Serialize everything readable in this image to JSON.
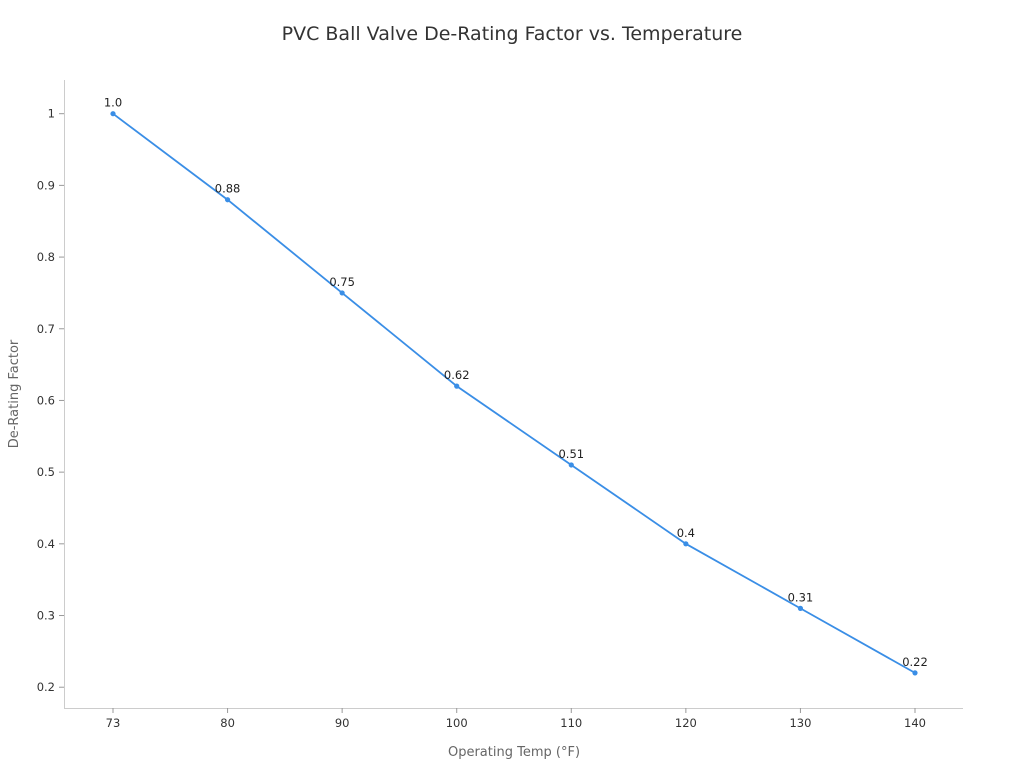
{
  "chart_data": {
    "type": "line",
    "title": "PVC Ball Valve De-Rating Factor vs. Temperature",
    "xlabel": "Operating Temp (°F)",
    "ylabel": "De-Rating Factor",
    "categories": [
      "73",
      "80",
      "90",
      "100",
      "110",
      "120",
      "130",
      "140"
    ],
    "values": [
      1.0,
      0.88,
      0.75,
      0.62,
      0.51,
      0.4,
      0.31,
      0.22
    ],
    "data_labels": [
      "1.0",
      "0.88",
      "0.75",
      "0.62",
      "0.51",
      "0.4",
      "0.31",
      "0.22"
    ],
    "yticks": [
      "0.2",
      "0.3",
      "0.4",
      "0.5",
      "0.6",
      "0.7",
      "0.8",
      "0.9",
      "1"
    ],
    "ytick_values": [
      0.2,
      0.3,
      0.4,
      0.5,
      0.6,
      0.7,
      0.8,
      0.9,
      1.0
    ],
    "ylim": [
      0.171,
      1.047
    ],
    "grid": false,
    "legend": "none",
    "color": "#3a8ee6"
  }
}
